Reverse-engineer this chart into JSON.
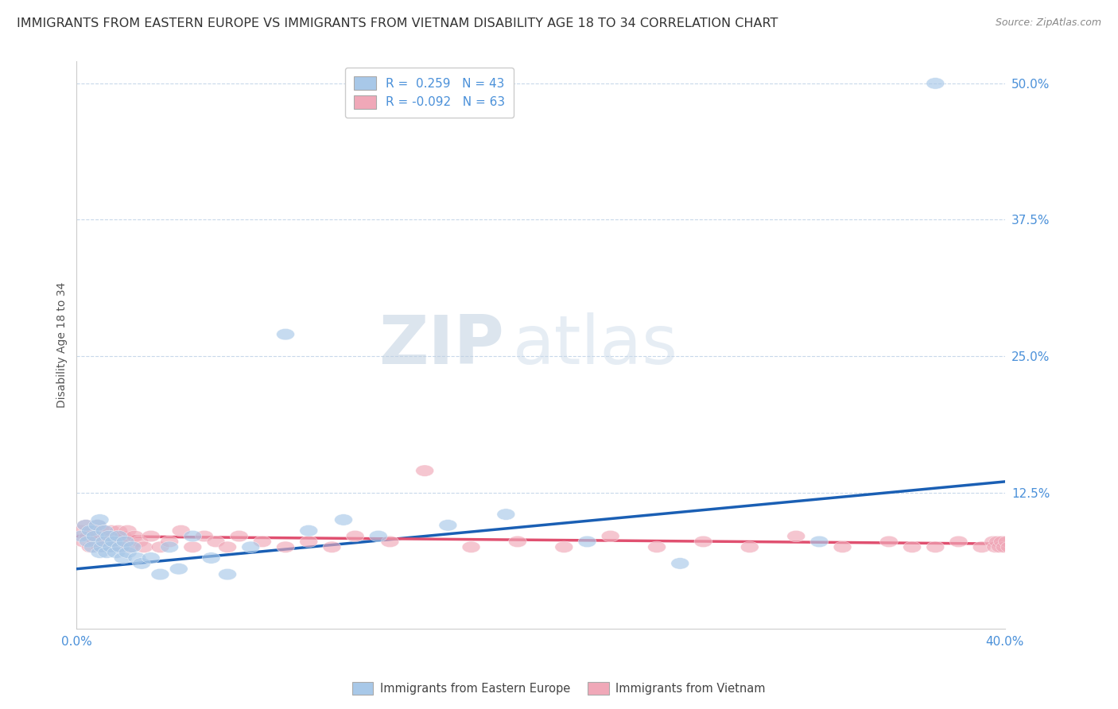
{
  "title": "IMMIGRANTS FROM EASTERN EUROPE VS IMMIGRANTS FROM VIETNAM DISABILITY AGE 18 TO 34 CORRELATION CHART",
  "source": "Source: ZipAtlas.com",
  "ylabel": "Disability Age 18 to 34",
  "xlim": [
    0.0,
    0.4
  ],
  "ylim": [
    0.0,
    0.52
  ],
  "xticks": [
    0.0,
    0.4
  ],
  "xticklabels": [
    "0.0%",
    "40.0%"
  ],
  "ytick_positions": [
    0.125,
    0.25,
    0.375,
    0.5
  ],
  "ytick_labels": [
    "12.5%",
    "25.0%",
    "37.5%",
    "50.0%"
  ],
  "legend_label_blue": "Immigrants from Eastern Europe",
  "legend_label_pink": "Immigrants from Vietnam",
  "color_blue": "#a8c8e8",
  "color_pink": "#f0a8b8",
  "color_line_blue": "#1a5fb4",
  "color_line_pink": "#e05070",
  "color_tick": "#4a90d9",
  "watermark_zip": "ZIP",
  "watermark_atlas": "atlas",
  "background_color": "#ffffff",
  "grid_color": "#c8d8ea",
  "title_fontsize": 11.5,
  "axis_label_fontsize": 10,
  "tick_fontsize": 11,
  "legend_fontsize": 11,
  "blue_r": "R =  0.259",
  "blue_n": "N = 43",
  "pink_r": "R = -0.092",
  "pink_n": "N = 63",
  "blue_scatter_x": [
    0.002,
    0.004,
    0.005,
    0.006,
    0.007,
    0.008,
    0.009,
    0.01,
    0.01,
    0.011,
    0.012,
    0.012,
    0.013,
    0.014,
    0.015,
    0.016,
    0.017,
    0.018,
    0.019,
    0.02,
    0.021,
    0.022,
    0.024,
    0.026,
    0.028,
    0.032,
    0.036,
    0.04,
    0.044,
    0.05,
    0.058,
    0.065,
    0.075,
    0.09,
    0.1,
    0.115,
    0.13,
    0.16,
    0.185,
    0.22,
    0.26,
    0.32,
    0.37
  ],
  "blue_scatter_y": [
    0.085,
    0.095,
    0.08,
    0.09,
    0.075,
    0.085,
    0.095,
    0.07,
    0.1,
    0.075,
    0.08,
    0.09,
    0.07,
    0.085,
    0.075,
    0.08,
    0.07,
    0.085,
    0.075,
    0.065,
    0.08,
    0.07,
    0.075,
    0.065,
    0.06,
    0.065,
    0.05,
    0.075,
    0.055,
    0.085,
    0.065,
    0.05,
    0.075,
    0.27,
    0.09,
    0.1,
    0.085,
    0.095,
    0.105,
    0.08,
    0.06,
    0.08,
    0.5
  ],
  "pink_scatter_x": [
    0.002,
    0.003,
    0.004,
    0.005,
    0.006,
    0.007,
    0.008,
    0.009,
    0.01,
    0.011,
    0.012,
    0.013,
    0.014,
    0.015,
    0.016,
    0.017,
    0.018,
    0.019,
    0.02,
    0.021,
    0.022,
    0.023,
    0.025,
    0.027,
    0.029,
    0.032,
    0.036,
    0.04,
    0.045,
    0.05,
    0.055,
    0.06,
    0.065,
    0.07,
    0.08,
    0.09,
    0.1,
    0.11,
    0.12,
    0.135,
    0.15,
    0.17,
    0.19,
    0.21,
    0.23,
    0.25,
    0.27,
    0.29,
    0.31,
    0.33,
    0.35,
    0.36,
    0.37,
    0.38,
    0.39,
    0.395,
    0.396,
    0.397,
    0.398,
    0.399,
    0.4,
    0.401,
    0.402
  ],
  "pink_scatter_y": [
    0.09,
    0.08,
    0.095,
    0.085,
    0.075,
    0.09,
    0.08,
    0.095,
    0.075,
    0.09,
    0.08,
    0.085,
    0.075,
    0.09,
    0.085,
    0.08,
    0.09,
    0.075,
    0.085,
    0.08,
    0.09,
    0.075,
    0.085,
    0.08,
    0.075,
    0.085,
    0.075,
    0.08,
    0.09,
    0.075,
    0.085,
    0.08,
    0.075,
    0.085,
    0.08,
    0.075,
    0.08,
    0.075,
    0.085,
    0.08,
    0.145,
    0.075,
    0.08,
    0.075,
    0.085,
    0.075,
    0.08,
    0.075,
    0.085,
    0.075,
    0.08,
    0.075,
    0.075,
    0.08,
    0.075,
    0.08,
    0.075,
    0.08,
    0.075,
    0.08,
    0.075,
    0.08,
    0.075
  ],
  "blue_line_x0": 0.0,
  "blue_line_y0": 0.055,
  "blue_line_x1": 0.4,
  "blue_line_y1": 0.135,
  "pink_line_x0": 0.0,
  "pink_line_y0": 0.085,
  "pink_line_x1": 0.4,
  "pink_line_y1": 0.078
}
